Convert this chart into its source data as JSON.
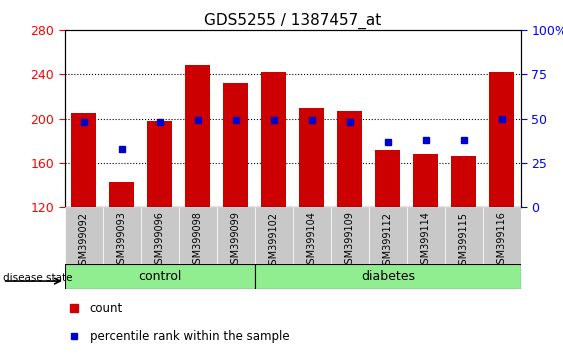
{
  "title": "GDS5255 / 1387457_at",
  "samples": [
    "GSM399092",
    "GSM399093",
    "GSM399096",
    "GSM399098",
    "GSM399099",
    "GSM399102",
    "GSM399104",
    "GSM399109",
    "GSM399112",
    "GSM399114",
    "GSM399115",
    "GSM399116"
  ],
  "control_count": 5,
  "diabetes_count": 7,
  "bar_values": [
    205,
    143,
    198,
    248,
    232,
    242,
    210,
    207,
    172,
    168,
    166,
    242
  ],
  "bar_base": 120,
  "percentile_values": [
    48,
    33,
    48,
    49,
    49,
    49,
    49,
    48,
    37,
    38,
    38,
    50
  ],
  "ylim_left": [
    120,
    280
  ],
  "ylim_right": [
    0,
    100
  ],
  "left_ticks": [
    120,
    160,
    200,
    240,
    280
  ],
  "right_ticks": [
    0,
    25,
    50,
    75,
    100
  ],
  "bar_color": "#CC0000",
  "percentile_color": "#0000CC",
  "light_green": "#90EE90",
  "title_fontsize": 11,
  "legend_count_label": "count",
  "legend_percentile_label": "percentile rank within the sample"
}
